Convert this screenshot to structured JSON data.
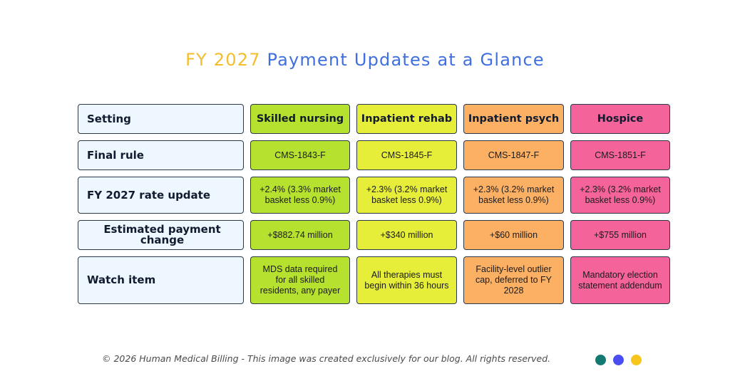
{
  "title": {
    "part1": "FY 2027",
    "part2": "Payment Updates at a Glance"
  },
  "table": {
    "row_labels": [
      "Setting",
      "Final rule",
      "FY 2027 rate update",
      "Estimated payment change",
      "Watch item"
    ],
    "columns": [
      {
        "setting": "Skilled nursing",
        "final_rule": "CMS-1843-F",
        "rate_update": "+2.4% (3.3% market basket less 0.9%)",
        "payment_change": "+$882.74 million",
        "watch_item": "MDS data required for all skilled residents, any payer"
      },
      {
        "setting": "Inpatient rehab",
        "final_rule": "CMS-1845-F",
        "rate_update": "+2.3% (3.2% market basket less 0.9%)",
        "payment_change": "+$340 million",
        "watch_item": "All therapies must begin within 36 hours"
      },
      {
        "setting": "Inpatient psych",
        "final_rule": "CMS-1847-F",
        "rate_update": "+2.3% (3.2% market basket less 0.9%)",
        "payment_change": "+$60 million",
        "watch_item": "Facility-level outlier cap, deferred to FY 2028"
      },
      {
        "setting": "Hospice",
        "final_rule": "CMS-1851-F",
        "rate_update": "+2.3% (3.2% market basket less 0.9%)",
        "payment_change": "+$755 million",
        "watch_item": "Mandatory election statement addendum"
      }
    ]
  },
  "colors": {
    "title_accent": "#f4bd2a",
    "title_main": "#3f6fe0",
    "label_bg": "#eef7ff",
    "skilled_nursing": "#b6e22f",
    "inpatient_rehab": "#e6ee3a",
    "inpatient_psych": "#fcb064",
    "hospice": "#f4639a",
    "dots": [
      "#137a72",
      "#4a4ef0",
      "#f7c51c"
    ]
  },
  "footer": {
    "text": "© 2026 Human Medical Billing - This image was created exclusively for our blog. All rights reserved."
  }
}
